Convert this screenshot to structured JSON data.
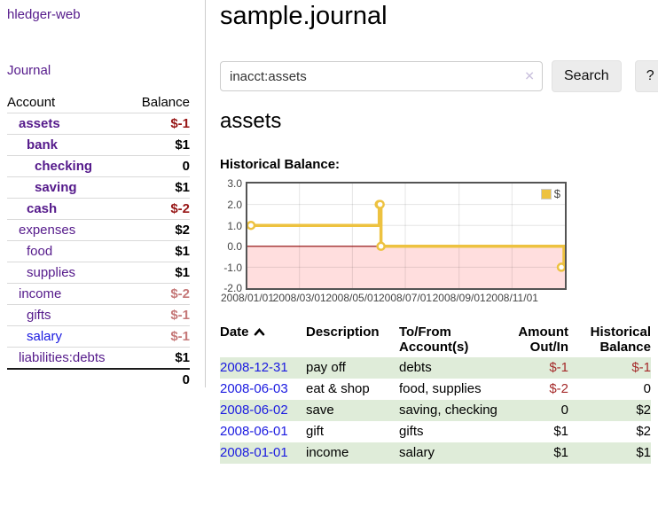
{
  "sidebar": {
    "brand": "hledger-web",
    "journal_label": "Journal",
    "accounts_table": {
      "col_account": "Account",
      "col_balance": "Balance",
      "rows": [
        {
          "name": "assets",
          "indent": 1,
          "bold": true,
          "balance": "$-1",
          "negative": true
        },
        {
          "name": "bank",
          "indent": 2,
          "bold": true,
          "balance": "$1",
          "negative": false
        },
        {
          "name": "checking",
          "indent": 3,
          "bold": true,
          "balance": "0",
          "negative": false
        },
        {
          "name": "saving",
          "indent": 3,
          "bold": true,
          "balance": "$1",
          "negative": false
        },
        {
          "name": "cash",
          "indent": 2,
          "bold": true,
          "balance": "$-2",
          "negative": true
        },
        {
          "name": "expenses",
          "indent": 1,
          "bold": false,
          "balance": "$2",
          "negative": false
        },
        {
          "name": "food",
          "indent": 2,
          "bold": false,
          "balance": "$1",
          "negative": false
        },
        {
          "name": "supplies",
          "indent": 2,
          "bold": false,
          "balance": "$1",
          "negative": false
        },
        {
          "name": "income",
          "indent": 1,
          "bold": false,
          "balance": "$-2",
          "negative": true
        },
        {
          "name": "gifts",
          "indent": 2,
          "bold": false,
          "balance": "$-1",
          "negative": true
        },
        {
          "name": "salary",
          "indent": 2,
          "bold": false,
          "blue": true,
          "balance": "$-1",
          "negative": true
        },
        {
          "name": "liabilities:debts",
          "indent": 1,
          "bold": false,
          "balance": "$1",
          "negative": false
        }
      ],
      "total": "0"
    }
  },
  "main": {
    "title": "sample.journal",
    "search": {
      "value": "inacct:assets",
      "clear_icon": "✕",
      "search_button": "Search",
      "help_button": "?"
    },
    "account_heading": "assets",
    "chart_heading": "Historical Balance:",
    "register": {
      "headers": [
        "Date",
        "Description",
        "To/From Account(s)",
        "Amount Out/In",
        "Historical Balance"
      ],
      "sort": "ascending",
      "rows": [
        {
          "date": "2008-12-31",
          "description": "pay off",
          "accounts": "debts",
          "amount": "$-1",
          "amount_negative": true,
          "balance": "$-1",
          "balance_negative": true,
          "shaded": true
        },
        {
          "date": "2008-06-03",
          "description": "eat & shop",
          "accounts": "food, supplies",
          "amount": "$-2",
          "amount_negative": true,
          "balance": "0",
          "balance_negative": false,
          "shaded": false
        },
        {
          "date": "2008-06-02",
          "description": "save",
          "accounts": "saving, checking",
          "amount": "0",
          "amount_negative": false,
          "balance": "$2",
          "balance_negative": false,
          "shaded": true
        },
        {
          "date": "2008-06-01",
          "description": "gift",
          "accounts": "gifts",
          "amount": "$1",
          "amount_negative": false,
          "balance": "$2",
          "balance_negative": false,
          "shaded": false
        },
        {
          "date": "2008-01-01",
          "description": "income",
          "accounts": "salary",
          "amount": "$1",
          "amount_negative": false,
          "balance": "$1",
          "balance_negative": false,
          "shaded": true
        }
      ]
    }
  },
  "chart_data": {
    "type": "line",
    "title": "Historical Balance:",
    "step": true,
    "grid": true,
    "legend_position": "top-right",
    "series": [
      {
        "name": "$",
        "color": "#edc240",
        "points": [
          [
            "2008-01-01",
            1
          ],
          [
            "2008-06-01",
            2
          ],
          [
            "2008-06-02",
            2
          ],
          [
            "2008-06-03",
            0
          ],
          [
            "2008-12-31",
            -1
          ]
        ]
      }
    ],
    "x_range": [
      "2008-01-01",
      "2009-01-01"
    ],
    "ylim": [
      -2,
      3
    ],
    "y_ticks": [
      "3.0",
      "2.0",
      "1.0",
      "0.0",
      "-1.0",
      "-2.0"
    ],
    "x_ticks": [
      "2008/01/01",
      "2008/03/01",
      "2008/05/01",
      "2008/07/01",
      "2008/09/01",
      "2008/11/01"
    ],
    "zero_line_color": "#8b0000",
    "negative_region_color": "#ffdede",
    "gridline_color": "rgba(0,0,0,0.10)",
    "border_color": "#545454"
  },
  "colors": {
    "link_purple": "#551a8b",
    "link_blue": "#1a1ae0",
    "negative_bold": "#971616",
    "negative_soft": "#c57878",
    "negative_table": "#a52a2a",
    "row_shade_green": "#dfecd9",
    "chart_line_gold": "#edc240"
  }
}
